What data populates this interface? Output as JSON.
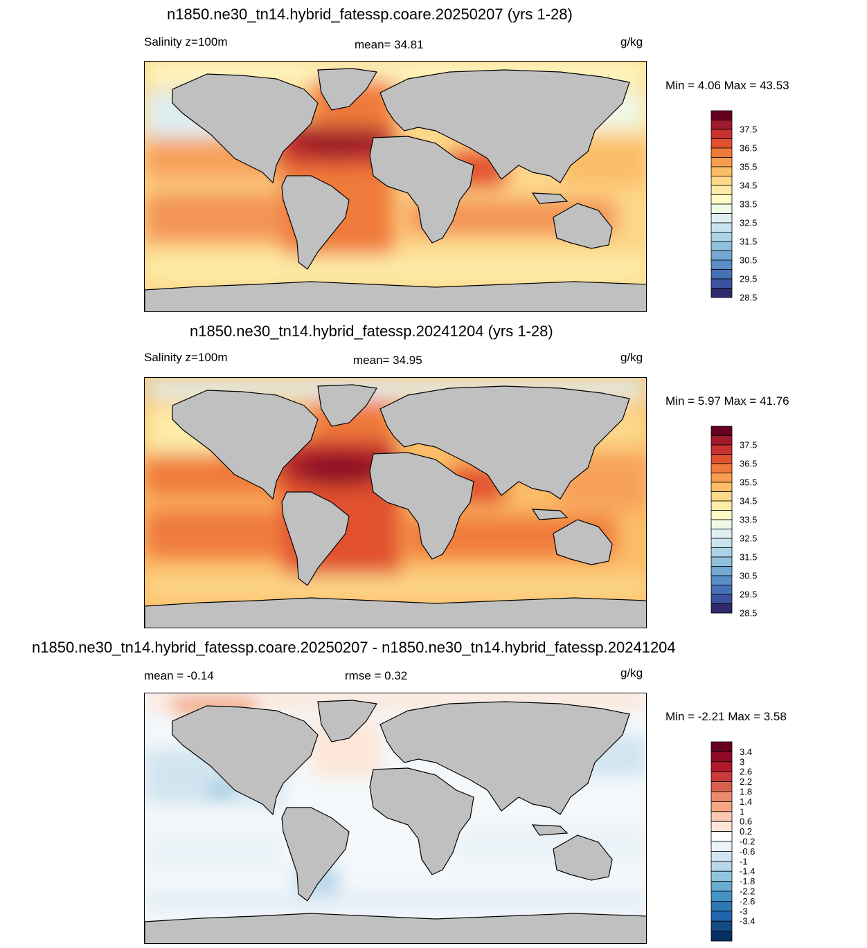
{
  "panels": [
    {
      "title": "n1850.ne30_tn14.hybrid_fatessp.coare.20250207 (yrs 1-28)",
      "left_label": "Salinity z=100m",
      "center_label": "mean=  34.81",
      "units": "g/kg",
      "minmax": "Min =    4.06 Max =  43.53",
      "palette": "salinity"
    },
    {
      "title": "n1850.ne30_tn14.hybrid_fatessp.20241204 (yrs 1-28)",
      "left_label": "Salinity z=100m",
      "center_label": "mean=  34.95",
      "units": "g/kg",
      "minmax": "Min =    5.97 Max =  41.76",
      "palette": "salinity"
    },
    {
      "title": "n1850.ne30_tn14.hybrid_fatessp.coare.20250207 - n1850.ne30_tn14.hybrid_fatessp.20241204",
      "left_label": "mean =  -0.14",
      "center_label": "rmse =    0.32",
      "units": "g/kg",
      "minmax": "Min =  -2.21 Max =    3.58",
      "palette": "difference"
    }
  ],
  "colorbars": {
    "salinity": {
      "labels": [
        "37.5",
        "36.5",
        "35.5",
        "34.5",
        "33.5",
        "32.5",
        "31.5",
        "30.5",
        "29.5",
        "28.5"
      ],
      "colors": [
        "#67001f",
        "#9e1a2c",
        "#c8312f",
        "#e2512f",
        "#f07a3b",
        "#f79d4f",
        "#fbbd67",
        "#fdd78a",
        "#fdeca8",
        "#fefbc7",
        "#f0f8e6",
        "#deeff2",
        "#c8e4ee",
        "#acd3e6",
        "#8fc0dd",
        "#74a7d2",
        "#5a8cc5",
        "#4571b5",
        "#3c529e",
        "#302b6f"
      ]
    },
    "difference": {
      "labels": [
        "3.4",
        "3",
        "2.6",
        "2.2",
        "1.8",
        "1.4",
        "1",
        "0.6",
        "0.2",
        "-0.2",
        "-0.6",
        "-1",
        "-1.4",
        "-1.8",
        "-2.2",
        "-2.6",
        "-3",
        "-3.4"
      ],
      "colors": [
        "#67001f",
        "#8e0a26",
        "#b2182b",
        "#c93a3b",
        "#d6604d",
        "#e98b6e",
        "#f4a582",
        "#fac8b0",
        "#fde6d8",
        "#ffffff",
        "#ebf3f8",
        "#d1e5f0",
        "#b6d6ea",
        "#92c5de",
        "#6aabd1",
        "#4393c3",
        "#2f77b4",
        "#2166ac",
        "#134b84",
        "#053061"
      ]
    }
  },
  "legend": {
    "land_color": "#c0c0c0"
  }
}
